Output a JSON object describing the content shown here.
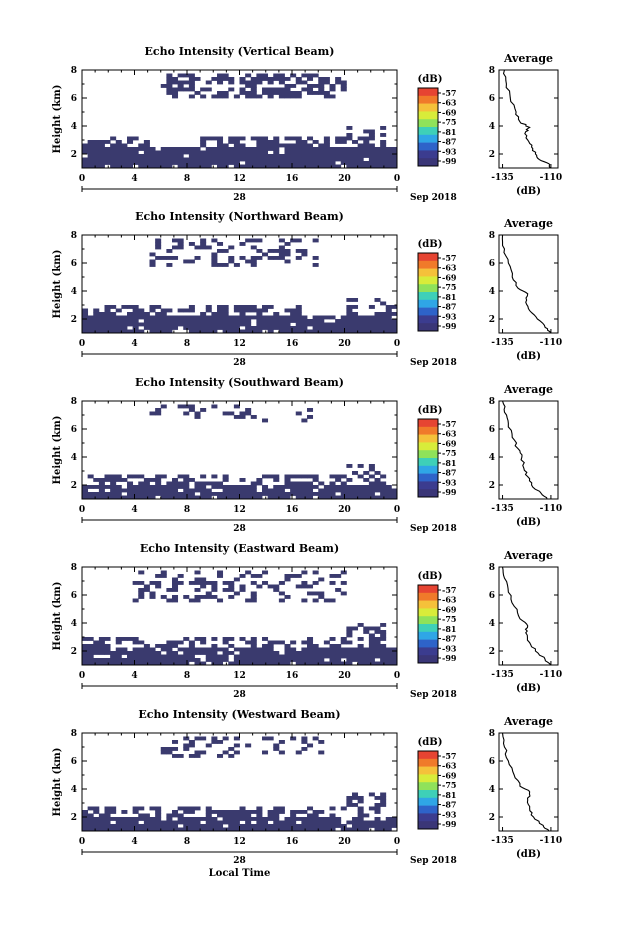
{
  "figure": {
    "x_label": "Local Time",
    "date_label": "Sep 2018",
    "date_tick_label": "28",
    "colorbar_unit": "(dB)",
    "colorbar_ticks": [
      "-57",
      "-63",
      "-69",
      "-75",
      "-81",
      "-87",
      "-93",
      "-99"
    ],
    "colorbar_colors": [
      "#e64432",
      "#f07a2a",
      "#f5c13a",
      "#d8ec3a",
      "#8fe25a",
      "#3ed0b8",
      "#2fa6e6",
      "#2e63c9",
      "#3b3c8f",
      "#3a3677"
    ],
    "fill_color": "#3a3a6e",
    "avg_title": "Average",
    "avg_xlabel": "(dB)"
  },
  "chart_data": [
    {
      "type": "heatmap",
      "title": "Echo Intensity (Vertical Beam)",
      "ylabel": "Height (km)",
      "xlabel": "Local Time",
      "x_ticks": [
        "0",
        "4",
        "8",
        "12",
        "16",
        "20",
        "0"
      ],
      "y_ticks": [
        "2",
        "4",
        "6",
        "8"
      ],
      "xlim": [
        0,
        24
      ],
      "ylim": [
        1,
        8
      ],
      "colorbar": {
        "unit": "(dB)",
        "ticks": [
          -57,
          -63,
          -69,
          -75,
          -81,
          -87,
          -93,
          -99
        ]
      },
      "regions": [
        {
          "t0": 0,
          "t1": 24,
          "h0": 1.0,
          "h1": 2.6,
          "density": 0.95
        },
        {
          "t0": 0,
          "t1": 5,
          "h0": 2.6,
          "h1": 3.2,
          "density": 0.5
        },
        {
          "t0": 9,
          "t1": 20,
          "h0": 2.6,
          "h1": 3.3,
          "density": 0.55
        },
        {
          "t0": 20,
          "t1": 23,
          "h0": 2.6,
          "h1": 3.9,
          "density": 0.5
        },
        {
          "t0": 6,
          "t1": 20,
          "h0": 6.0,
          "h1": 7.8,
          "density": 0.55
        }
      ],
      "average": {
        "title": "Average",
        "xlabel": "(dB)",
        "x_ticks": [
          "-135",
          "-110"
        ],
        "y_ticks": [
          "2",
          "4",
          "6",
          "8"
        ],
        "profile": [
          [
            1.0,
            -110
          ],
          [
            1.3,
            -111
          ],
          [
            1.6,
            -116
          ],
          [
            2.0,
            -118
          ],
          [
            2.5,
            -120
          ],
          [
            3.0,
            -122
          ],
          [
            3.6,
            -123
          ],
          [
            3.9,
            -121
          ],
          [
            4.3,
            -126
          ],
          [
            5.0,
            -128
          ],
          [
            6.0,
            -131
          ],
          [
            7.0,
            -133
          ],
          [
            8.0,
            -134
          ]
        ]
      }
    },
    {
      "type": "heatmap",
      "title": "Echo Intensity (Northward Beam)",
      "ylabel": "Height (km)",
      "xlabel": "Local Time",
      "x_ticks": [
        "0",
        "4",
        "8",
        "12",
        "16",
        "20",
        "0"
      ],
      "y_ticks": [
        "2",
        "4",
        "6",
        "8"
      ],
      "xlim": [
        0,
        24
      ],
      "ylim": [
        1,
        8
      ],
      "colorbar": {
        "unit": "(dB)",
        "ticks": [
          -57,
          -63,
          -69,
          -75,
          -81,
          -87,
          -93,
          -99
        ]
      },
      "regions": [
        {
          "t0": 0,
          "t1": 24,
          "h0": 1.0,
          "h1": 2.2,
          "density": 0.92
        },
        {
          "t0": 0,
          "t1": 17,
          "h0": 2.2,
          "h1": 3.0,
          "density": 0.5
        },
        {
          "t0": 20,
          "t1": 24,
          "h0": 2.2,
          "h1": 3.5,
          "density": 0.45
        },
        {
          "t0": 5,
          "t1": 18,
          "h0": 5.8,
          "h1": 7.8,
          "density": 0.3
        }
      ],
      "average": {
        "title": "Average",
        "xlabel": "(dB)",
        "x_ticks": [
          "-135",
          "-110"
        ],
        "y_ticks": [
          "2",
          "4",
          "6",
          "8"
        ],
        "profile": [
          [
            1.0,
            -110
          ],
          [
            1.4,
            -113
          ],
          [
            2.0,
            -117
          ],
          [
            2.6,
            -121
          ],
          [
            3.2,
            -123
          ],
          [
            3.8,
            -122
          ],
          [
            4.2,
            -127
          ],
          [
            5.0,
            -130
          ],
          [
            6.0,
            -132
          ],
          [
            7.0,
            -134
          ],
          [
            8.0,
            -135
          ]
        ]
      }
    },
    {
      "type": "heatmap",
      "title": "Echo Intensity (Southward Beam)",
      "ylabel": "Height (km)",
      "xlabel": "Local Time",
      "x_ticks": [
        "0",
        "4",
        "8",
        "12",
        "16",
        "20",
        "0"
      ],
      "y_ticks": [
        "2",
        "4",
        "6",
        "8"
      ],
      "xlim": [
        0,
        24
      ],
      "ylim": [
        1,
        8
      ],
      "colorbar": {
        "unit": "(dB)",
        "ticks": [
          -57,
          -63,
          -69,
          -75,
          -81,
          -87,
          -93,
          -99
        ]
      },
      "regions": [
        {
          "t0": 0,
          "t1": 24,
          "h0": 1.0,
          "h1": 2.0,
          "density": 0.9
        },
        {
          "t0": 0,
          "t1": 20,
          "h0": 2.0,
          "h1": 2.8,
          "density": 0.45
        },
        {
          "t0": 20,
          "t1": 23,
          "h0": 2.0,
          "h1": 3.6,
          "density": 0.45
        },
        {
          "t0": 5,
          "t1": 18,
          "h0": 6.4,
          "h1": 7.8,
          "density": 0.2
        }
      ],
      "average": {
        "title": "Average",
        "xlabel": "(dB)",
        "x_ticks": [
          "-135",
          "-110"
        ],
        "y_ticks": [
          "2",
          "4",
          "6",
          "8"
        ],
        "profile": [
          [
            1.0,
            -112
          ],
          [
            1.4,
            -115
          ],
          [
            2.0,
            -120
          ],
          [
            2.6,
            -122
          ],
          [
            3.2,
            -124
          ],
          [
            4.0,
            -125
          ],
          [
            4.6,
            -127
          ],
          [
            5.4,
            -130
          ],
          [
            6.4,
            -132
          ],
          [
            7.2,
            -134
          ],
          [
            8.0,
            -135
          ]
        ]
      }
    },
    {
      "type": "heatmap",
      "title": "Echo Intensity (Eastward Beam)",
      "ylabel": "Height (km)",
      "xlabel": "Local Time",
      "x_ticks": [
        "0",
        "4",
        "8",
        "12",
        "16",
        "20",
        "0"
      ],
      "y_ticks": [
        "2",
        "4",
        "6",
        "8"
      ],
      "xlim": [
        0,
        24
      ],
      "ylim": [
        1,
        8
      ],
      "colorbar": {
        "unit": "(dB)",
        "ticks": [
          -57,
          -63,
          -69,
          -75,
          -81,
          -87,
          -93,
          -99
        ]
      },
      "regions": [
        {
          "t0": 0,
          "t1": 24,
          "h0": 1.0,
          "h1": 2.2,
          "density": 0.93
        },
        {
          "t0": 0,
          "t1": 20,
          "h0": 2.2,
          "h1": 2.9,
          "density": 0.5
        },
        {
          "t0": 20,
          "t1": 23,
          "h0": 2.2,
          "h1": 4.0,
          "density": 0.5
        },
        {
          "t0": 4,
          "t1": 20,
          "h0": 5.5,
          "h1": 7.8,
          "density": 0.35
        }
      ],
      "average": {
        "title": "Average",
        "xlabel": "(dB)",
        "x_ticks": [
          "-135",
          "-110"
        ],
        "y_ticks": [
          "2",
          "4",
          "6",
          "8"
        ],
        "profile": [
          [
            1.0,
            -110
          ],
          [
            1.4,
            -113
          ],
          [
            2.0,
            -118
          ],
          [
            2.6,
            -121
          ],
          [
            3.3,
            -123
          ],
          [
            3.8,
            -122
          ],
          [
            4.3,
            -126
          ],
          [
            5.2,
            -129
          ],
          [
            6.2,
            -132
          ],
          [
            7.2,
            -134
          ],
          [
            8.0,
            -135
          ]
        ]
      }
    },
    {
      "type": "heatmap",
      "title": "Echo Intensity (Westward Beam)",
      "ylabel": "Height (km)",
      "xlabel": "Local Time",
      "x_ticks": [
        "0",
        "4",
        "8",
        "12",
        "16",
        "20",
        "0"
      ],
      "y_ticks": [
        "2",
        "4",
        "6",
        "8"
      ],
      "xlim": [
        0,
        24
      ],
      "ylim": [
        1,
        8
      ],
      "colorbar": {
        "unit": "(dB)",
        "ticks": [
          -57,
          -63,
          -69,
          -75,
          -81,
          -87,
          -93,
          -99
        ]
      },
      "regions": [
        {
          "t0": 0,
          "t1": 24,
          "h0": 1.0,
          "h1": 2.1,
          "density": 0.92
        },
        {
          "t0": 0,
          "t1": 20,
          "h0": 2.1,
          "h1": 2.8,
          "density": 0.5
        },
        {
          "t0": 20,
          "t1": 23,
          "h0": 2.1,
          "h1": 3.8,
          "density": 0.45
        },
        {
          "t0": 6,
          "t1": 19,
          "h0": 6.2,
          "h1": 7.8,
          "density": 0.25
        }
      ],
      "average": {
        "title": "Average",
        "xlabel": "(dB)",
        "x_ticks": [
          "-135",
          "-110"
        ],
        "y_ticks": [
          "2",
          "4",
          "6",
          "8"
        ],
        "profile": [
          [
            1.0,
            -111
          ],
          [
            1.4,
            -114
          ],
          [
            2.0,
            -119
          ],
          [
            2.6,
            -121
          ],
          [
            3.2,
            -122
          ],
          [
            3.8,
            -121
          ],
          [
            4.2,
            -126
          ],
          [
            5.0,
            -129
          ],
          [
            6.0,
            -132
          ],
          [
            7.0,
            -134
          ],
          [
            8.0,
            -135
          ]
        ]
      }
    }
  ]
}
